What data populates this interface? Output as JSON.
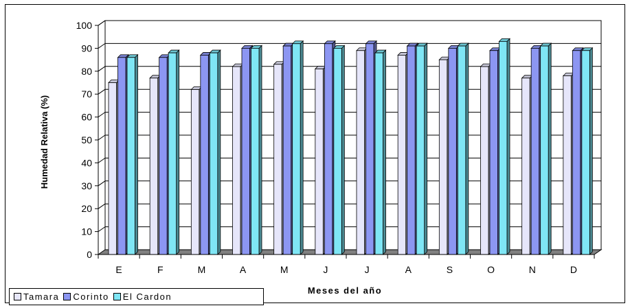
{
  "chart_data": {
    "type": "bar",
    "xlabel": "Meses del año",
    "ylabel": "Humedad Relativa (%)",
    "categories": [
      "E",
      "F",
      "M",
      "A",
      "M",
      "J",
      "J",
      "A",
      "S",
      "O",
      "N",
      "D"
    ],
    "yticks": [
      "0",
      "10",
      "20",
      "30",
      "40",
      "50",
      "60",
      "70",
      "80",
      "90",
      "100"
    ],
    "ylim": [
      0,
      100
    ],
    "grid": true,
    "legend_position": "bottom-left",
    "series": [
      {
        "name": "Tamara",
        "color": "#E6E6FA",
        "values": [
          75,
          77,
          72,
          82,
          83,
          81,
          89,
          87,
          85,
          82,
          77,
          78
        ]
      },
      {
        "name": "Corinto",
        "color": "#8C96F2",
        "values": [
          86,
          86,
          87,
          90,
          91,
          92,
          92,
          91,
          90,
          89,
          90,
          89
        ]
      },
      {
        "name": "El Cardon",
        "color": "#7FE6F5",
        "values": [
          86,
          88,
          88,
          90,
          92,
          90,
          88,
          91,
          91,
          93,
          91,
          89
        ]
      }
    ]
  }
}
